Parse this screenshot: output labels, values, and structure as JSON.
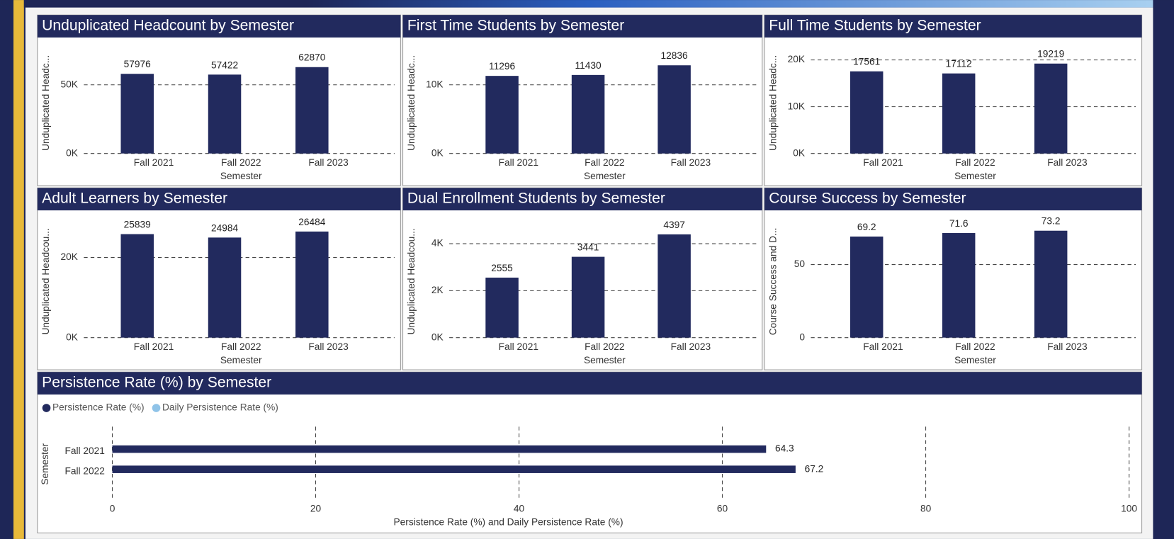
{
  "chart_data": [
    {
      "type": "bar",
      "title": "Unduplicated Headcount by Semester",
      "categories": [
        "Fall 2021",
        "Fall 2022",
        "Fall 2023"
      ],
      "values": [
        57976,
        57422,
        62870
      ],
      "color": "#222a5e",
      "ylim": [
        0,
        79000
      ],
      "yticks": [
        {
          "value": 0,
          "label": "0K"
        },
        {
          "value": 50000,
          "label": "50K"
        }
      ],
      "y_label": "Unduplicated Headc...",
      "x_label": "Semester",
      "grid": true
    },
    {
      "type": "bar",
      "title": "First Time Students by Semester",
      "categories": [
        "Fall 2021",
        "Fall 2022",
        "Fall 2023"
      ],
      "values": [
        11296,
        11430,
        12836
      ],
      "color": "#222a5e",
      "ylim": [
        0,
        15800
      ],
      "yticks": [
        {
          "value": 0,
          "label": "0K"
        },
        {
          "value": 10000,
          "label": "10K"
        }
      ],
      "y_label": "Unduplicated Headc...",
      "x_label": "Semester",
      "grid": true
    },
    {
      "type": "bar",
      "title": "Full Time Students by Semester",
      "categories": [
        "Fall 2021",
        "Fall 2022",
        "Fall 2023"
      ],
      "values": [
        17561,
        17112,
        19219
      ],
      "color": "#222a5e",
      "ylim": [
        0,
        23200
      ],
      "yticks": [
        {
          "value": 0,
          "label": "0K"
        },
        {
          "value": 10000,
          "label": "10K"
        },
        {
          "value": 20000,
          "label": "20K"
        }
      ],
      "y_label": "Unduplicated Headc...",
      "x_label": "Semester",
      "grid": true
    },
    {
      "type": "bar",
      "title": "Adult Learners by Semester",
      "categories": [
        "Fall 2021",
        "Fall 2022",
        "Fall 2023"
      ],
      "values": [
        25839,
        24984,
        26484
      ],
      "color": "#222a5e",
      "ylim": [
        0,
        29900
      ],
      "yticks": [
        {
          "value": 0,
          "label": "0K"
        },
        {
          "value": 20000,
          "label": "20K"
        }
      ],
      "y_label": "Unduplicated Headcou...",
      "x_label": "Semester",
      "grid": true
    },
    {
      "type": "bar",
      "title": "Dual Enrollment Students by Semester",
      "categories": [
        "Fall 2021",
        "Fall 2022",
        "Fall 2023"
      ],
      "values": [
        2555,
        3441,
        4397
      ],
      "color": "#222a5e",
      "ylim": [
        0,
        5100
      ],
      "yticks": [
        {
          "value": 0,
          "label": "0K"
        },
        {
          "value": 2000,
          "label": "2K"
        },
        {
          "value": 4000,
          "label": "4K"
        }
      ],
      "y_label": "Unduplicated Headcou...",
      "x_label": "Semester",
      "grid": true
    },
    {
      "type": "bar",
      "title": "Course Success by Semester",
      "categories": [
        "Fall 2021",
        "Fall 2022",
        "Fall 2023"
      ],
      "values": [
        69.2,
        71.6,
        73.2
      ],
      "color": "#222a5e",
      "ylim": [
        0,
        82
      ],
      "yticks": [
        0,
        50
      ],
      "y_label": "Course Success and D...",
      "x_label": "Semester",
      "grid": true
    },
    {
      "type": "bar",
      "orientation": "horizontal",
      "title": "Persistence Rate (%) by Semester",
      "categories": [
        "Fall 2021",
        "Fall 2022"
      ],
      "series": [
        {
          "name": "Persistence Rate (%)",
          "color": "#222a5e",
          "values": [
            64.3,
            67.2
          ]
        },
        {
          "name": "Daily Persistence Rate (%)",
          "color": "#8fc3e8",
          "values": [
            null,
            null
          ]
        }
      ],
      "xlim": [
        0,
        100
      ],
      "xticks": [
        0,
        20,
        40,
        60,
        80,
        100
      ],
      "x_label": "Persistence Rate (%) and Daily Persistence Rate (%)",
      "y_label": "Semester",
      "grid": true
    }
  ]
}
